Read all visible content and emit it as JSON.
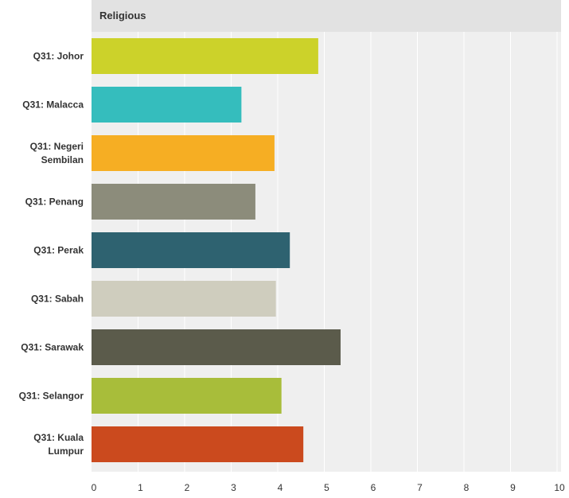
{
  "chart_data": {
    "type": "bar",
    "orientation": "horizontal",
    "title": "Religious",
    "xlabel": "",
    "ylabel": "",
    "xlim": [
      0,
      10
    ],
    "ticks": [
      "0",
      "1",
      "2",
      "3",
      "4",
      "5",
      "6",
      "7",
      "8",
      "9",
      "10"
    ],
    "grid": true,
    "categories": [
      [
        "Q31: Johor"
      ],
      [
        "Q31: Malacca"
      ],
      [
        "Q31: Negeri",
        "Sembilan"
      ],
      [
        "Q31: Penang"
      ],
      [
        "Q31: Perak"
      ],
      [
        "Q31: Sabah"
      ],
      [
        "Q31: Sarawak"
      ],
      [
        "Q31: Selangor"
      ],
      [
        "Q31: Kuala",
        "Lumpur"
      ]
    ],
    "values": [
      4.87,
      3.22,
      3.93,
      3.52,
      4.26,
      3.96,
      5.35,
      4.08,
      4.55
    ],
    "colors": [
      "#ccd22a",
      "#35bdbd",
      "#f6ae23",
      "#8c8c7b",
      "#2e6270",
      "#cfcdbe",
      "#5b5b4b",
      "#a8bd3a",
      "#cb4a1e"
    ]
  },
  "style": {
    "plot_background": "#efefef",
    "title_background": "#e2e2e2",
    "gridline_color": "#ffffff",
    "text_color": "#333333"
  }
}
